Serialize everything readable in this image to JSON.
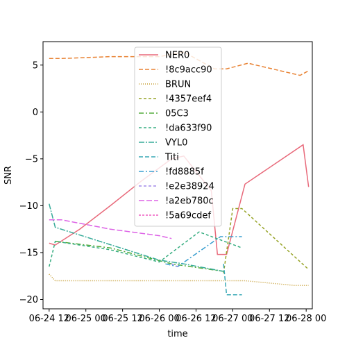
{
  "chart_data": {
    "type": "line",
    "xlabel": "time",
    "ylabel": "SNR",
    "x_tick_labels": [
      "06-24 12",
      "06-25 00",
      "06-25 12",
      "06-26 00",
      "06-26 12",
      "06-27 00",
      "06-27 12",
      "06-28 00"
    ],
    "x_tick_hours": [
      0,
      12,
      24,
      36,
      48,
      60,
      72,
      84
    ],
    "x_origin": "2024-06-24 00:00 (tick '06-24 12' = hour 0)",
    "xlim_hours": [
      -2,
      86
    ],
    "y_ticks": [
      5,
      0,
      -5,
      -10,
      -15,
      -20
    ],
    "y_tick_labels": [
      "5",
      "0",
      "−5",
      "−10",
      "−15",
      "−20"
    ],
    "ylim": [
      -21,
      7.5
    ],
    "grid": false,
    "legend_position": "upper center",
    "series": [
      {
        "name": "NER0",
        "color": "#e8697a",
        "dash": "",
        "x": [
          0,
          2,
          10,
          20,
          30,
          40,
          44,
          53,
          55,
          58,
          64,
          83,
          84.8
        ],
        "y": [
          -14.0,
          -14.2,
          -12.5,
          -10.0,
          -7.4,
          -5.0,
          -4.7,
          -8.4,
          -15.2,
          -15.2,
          -7.7,
          -3.5,
          -8.0
        ]
      },
      {
        "name": "!8c9acc90",
        "color": "#e88233",
        "dash": "6,3",
        "x": [
          0,
          4,
          20,
          36,
          44,
          54,
          58,
          65,
          82,
          84.8
        ],
        "y": [
          5.7,
          5.7,
          5.9,
          5.9,
          6.4,
          4.6,
          4.6,
          5.2,
          3.9,
          4.4
        ]
      },
      {
        "name": "BRUN",
        "color": "#c49a2c",
        "dash": "1,2",
        "x": [
          0,
          2,
          58,
          64,
          80,
          84.8
        ],
        "y": [
          -17.3,
          -18.0,
          -18.0,
          -18.0,
          -18.5,
          -18.5
        ]
      },
      {
        "name": "!4357eef4",
        "color": "#96a326",
        "dash": "4,3",
        "x": [
          57,
          60,
          63,
          84.8
        ],
        "y": [
          -17.2,
          -10.3,
          -10.3,
          -16.8
        ]
      },
      {
        "name": "05C3",
        "color": "#52ab3a",
        "dash": "7,3,2,3",
        "x": [
          2,
          20,
          40,
          57
        ],
        "y": [
          -13.8,
          -14.5,
          -16.2,
          -17.0
        ]
      },
      {
        "name": "!da633f90",
        "color": "#36ad80",
        "dash": "4,3",
        "x": [
          0,
          2,
          20,
          36,
          49,
          63
        ],
        "y": [
          -16.5,
          -13.8,
          -14.7,
          -16.0,
          -12.8,
          -14.5
        ]
      },
      {
        "name": "VYL0",
        "color": "#36ab99",
        "dash": "8,2,2,2",
        "x": [
          0,
          2,
          36,
          44,
          57
        ],
        "y": [
          -9.8,
          -12.3,
          -15.8,
          -16.2,
          -17.0
        ]
      },
      {
        "name": "Titi",
        "color": "#38a8b6",
        "dash": "6,3",
        "x": [
          57,
          58,
          63
        ],
        "y": [
          -16.2,
          -19.5,
          -19.5
        ]
      },
      {
        "name": "!fd8885f",
        "color": "#3a9fd0",
        "dash": "7,3,2,3",
        "x": [
          38,
          42,
          56,
          63
        ],
        "y": [
          -16.2,
          -16.5,
          -13.3,
          -13.3
        ]
      },
      {
        "name": "!e2e38924",
        "color": "#a28ae8",
        "dash": "4,3",
        "x": [
          40,
          42
        ],
        "y": [
          -16.2,
          -16.5
        ]
      },
      {
        "name": "!a2eb780c",
        "color": "#dd63e6",
        "dash": "8,3",
        "x": [
          0,
          4,
          20,
          36,
          40
        ],
        "y": [
          -11.5,
          -11.5,
          -12.5,
          -13.2,
          -13.5
        ]
      },
      {
        "name": "!5a69cdef",
        "color": "#ef5fc2",
        "dash": "3,2",
        "x": [],
        "y": []
      }
    ]
  }
}
